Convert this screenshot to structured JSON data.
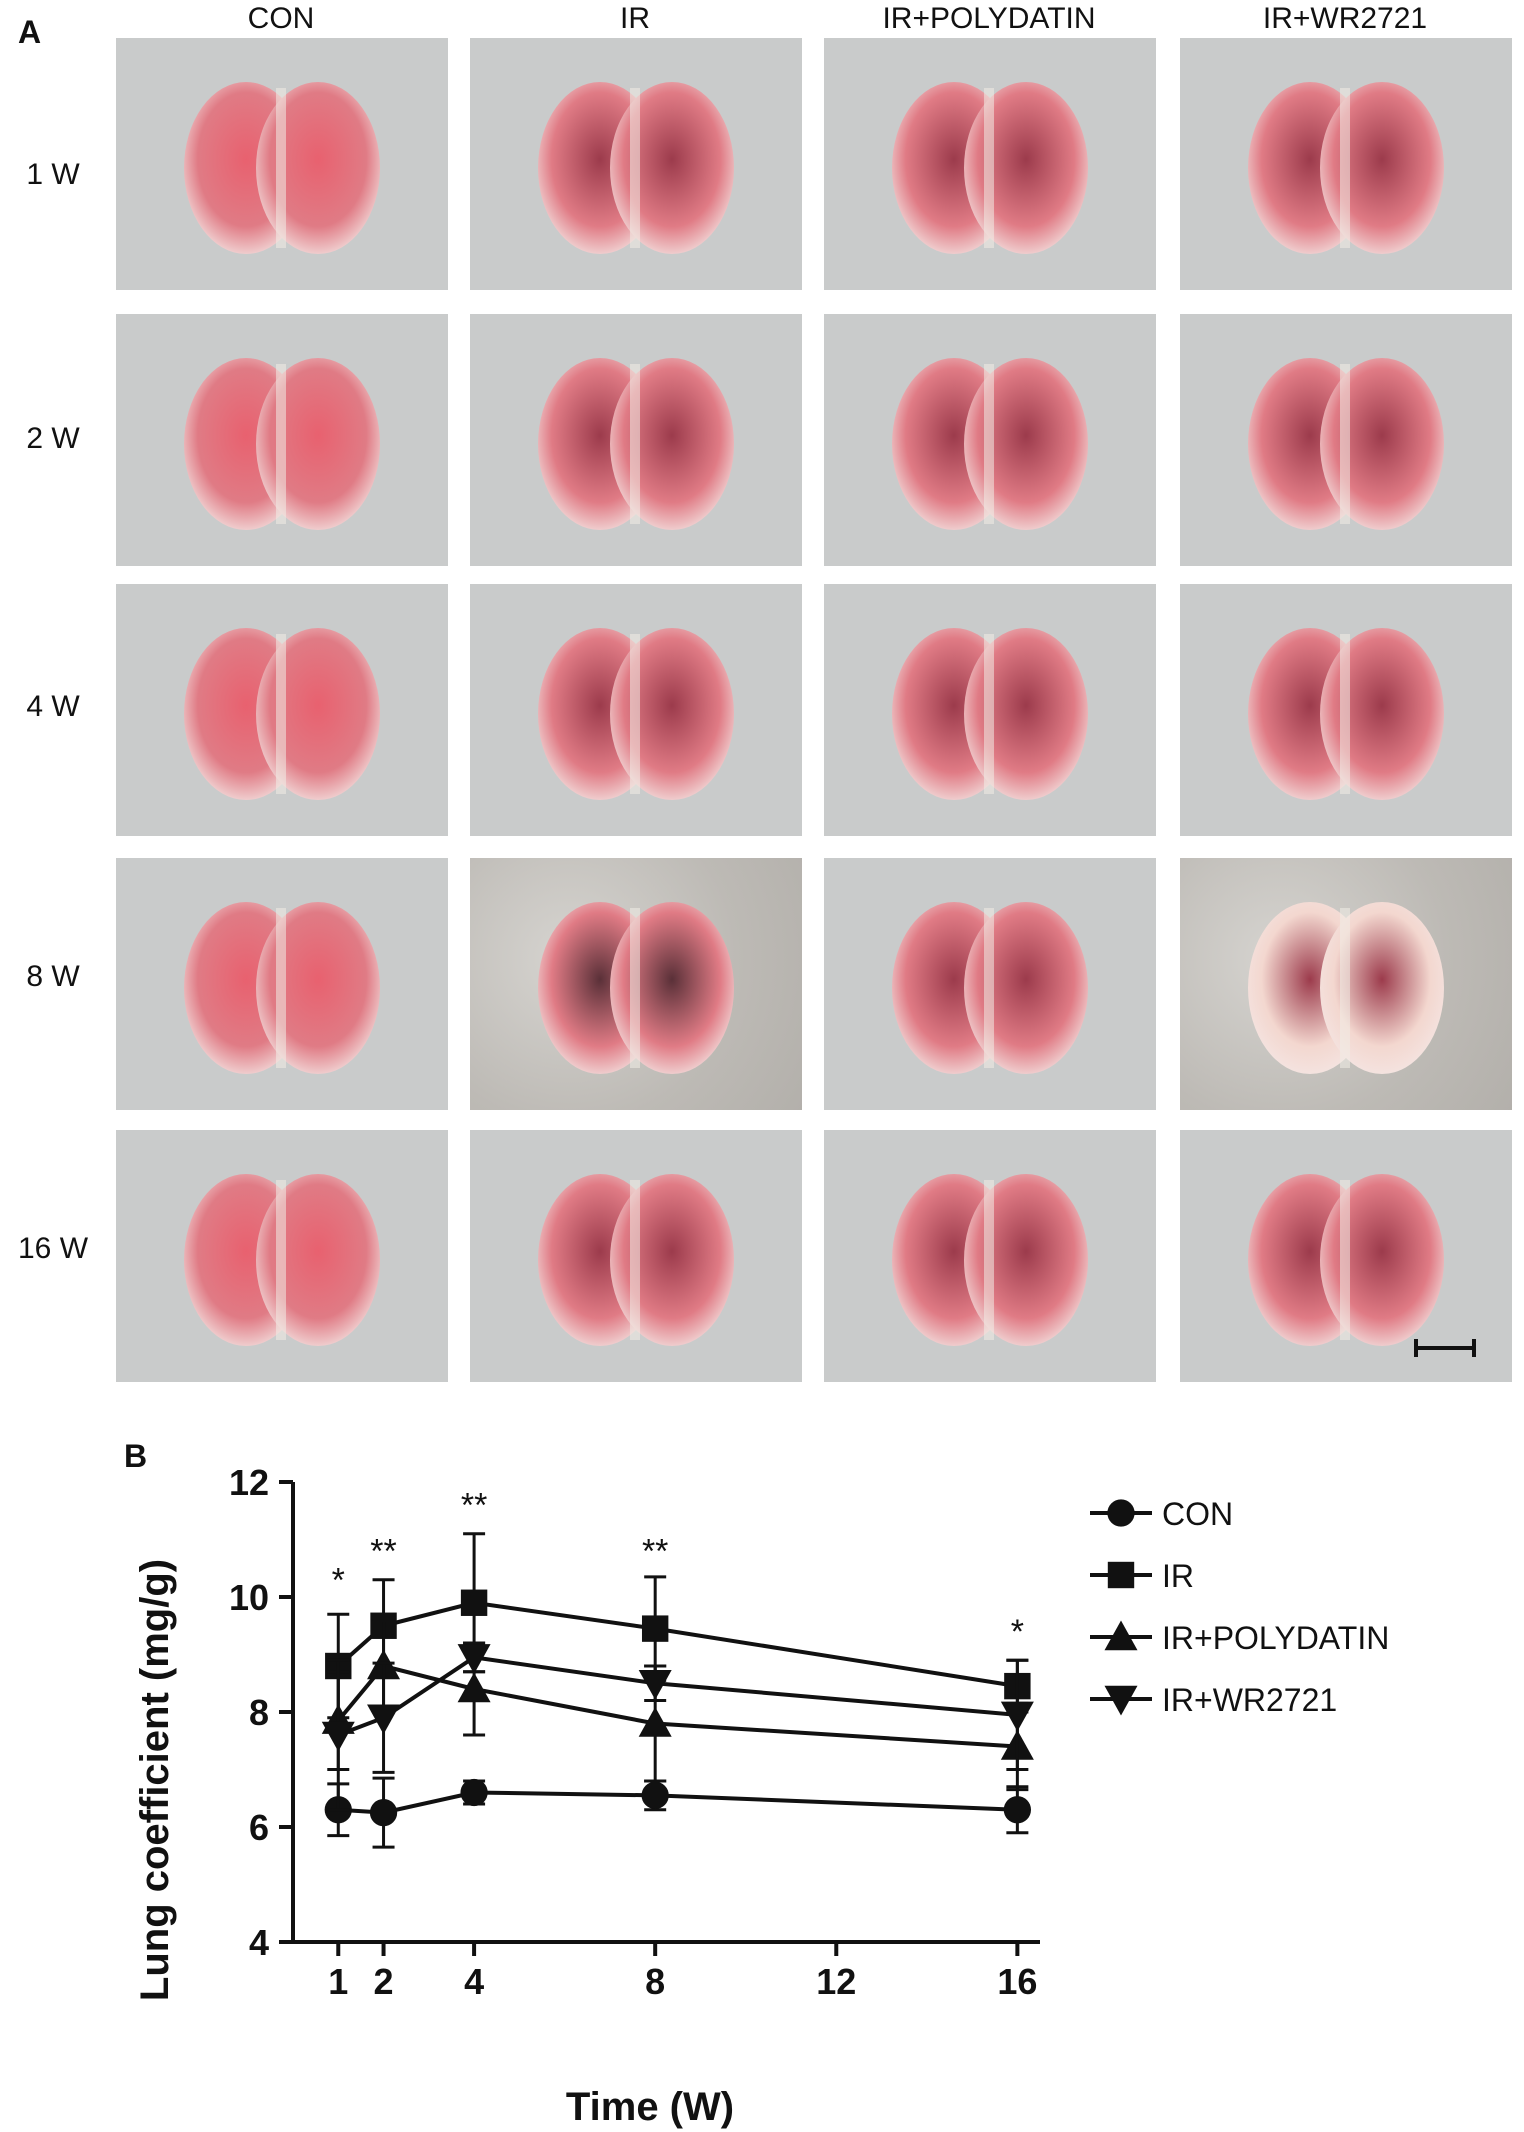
{
  "panel_a": {
    "label": "A",
    "columns": [
      "CON",
      "IR",
      "IR+POLYDATIN",
      "IR+WR2721"
    ],
    "rows": [
      "1 W",
      "2 W",
      "4 W",
      "8 W",
      "16 W"
    ]
  },
  "panel_b": {
    "label": "B"
  },
  "colors": {
    "line": "#111111",
    "lung_pink": "#e07b85",
    "lung_dark": "#9c3b4c",
    "photo_bg": "#c9cbcb"
  },
  "chart_data": {
    "type": "line",
    "xlabel": "Time (W)",
    "ylabel": "Lung coefficient (mg/g)",
    "xlim": [
      0,
      16.5
    ],
    "ylim": [
      4,
      12
    ],
    "xticks": [
      1,
      2,
      4,
      8,
      12,
      16
    ],
    "yticks": [
      4,
      6,
      8,
      10,
      12
    ],
    "x": [
      1,
      2,
      4,
      8,
      16
    ],
    "series": [
      {
        "name": "CON",
        "marker": "circle",
        "values": [
          6.3,
          6.25,
          6.6,
          6.55,
          6.3
        ],
        "errors": [
          0.45,
          0.6,
          0.2,
          0.25,
          0.4
        ]
      },
      {
        "name": "IR",
        "marker": "square",
        "values": [
          8.8,
          9.5,
          9.9,
          9.45,
          8.45
        ],
        "errors": [
          0.9,
          0.8,
          1.2,
          0.9,
          0.45
        ]
      },
      {
        "name": "IR+POLYDATIN",
        "marker": "triangle-up",
        "values": [
          7.85,
          8.8,
          8.4,
          7.8,
          7.4
        ],
        "errors": [
          0.85,
          0.8,
          0.8,
          1.0,
          0.75
        ]
      },
      {
        "name": "IR+WR2721",
        "marker": "triangle-down",
        "values": [
          7.6,
          7.9,
          8.95,
          8.5,
          7.95
        ],
        "errors": [
          1.3,
          0.95,
          0.25,
          0.3,
          0.95
        ]
      }
    ],
    "annotations": [
      {
        "x": 1,
        "y": 10.1,
        "text": "*"
      },
      {
        "x": 2,
        "y": 10.6,
        "text": "**"
      },
      {
        "x": 4,
        "y": 11.4,
        "text": "**"
      },
      {
        "x": 8,
        "y": 10.6,
        "text": "**"
      },
      {
        "x": 16,
        "y": 9.2,
        "text": "*"
      }
    ]
  }
}
